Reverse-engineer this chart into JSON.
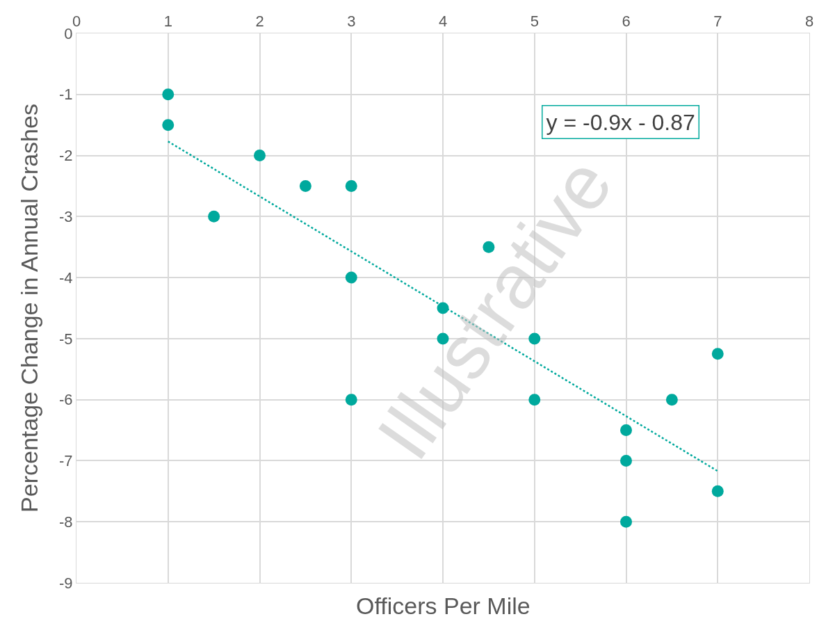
{
  "chart_data": {
    "type": "scatter",
    "xlabel": "Officers Per Mile",
    "ylabel": "Percentage Change in Annual Crashes",
    "xlim": [
      0,
      8
    ],
    "xticks": [
      0,
      1,
      2,
      3,
      4,
      5,
      6,
      7,
      8
    ],
    "ylim": [
      -9,
      0
    ],
    "yticks": [
      -9,
      -8,
      -7,
      -6,
      -5,
      -4,
      -3,
      -2,
      -1,
      0
    ],
    "grid": true,
    "marker": "circle",
    "series": [
      {
        "color": "#00a99d",
        "x": [
          1,
          1,
          2,
          1.5,
          2.5,
          3,
          3,
          4.5,
          4,
          4,
          5,
          3,
          5,
          6,
          6.5,
          7,
          6,
          7,
          6
        ],
        "values": [
          -1,
          -1.5,
          -2,
          -3,
          -2.5,
          -2.5,
          -4,
          -3.5,
          -4.5,
          -5,
          -5,
          -6,
          -6,
          -6.5,
          -6,
          -5.25,
          -7,
          -7.5,
          -8
        ]
      },
      {
        "type": "line",
        "color": "#00a99d",
        "line_style": "dotted",
        "marker": "none",
        "x": [
          1,
          7
        ],
        "values": [
          -1.77,
          -7.17
        ]
      }
    ],
    "annotations": [
      "y = -0.9x - 0.87",
      "Illustrative"
    ]
  }
}
